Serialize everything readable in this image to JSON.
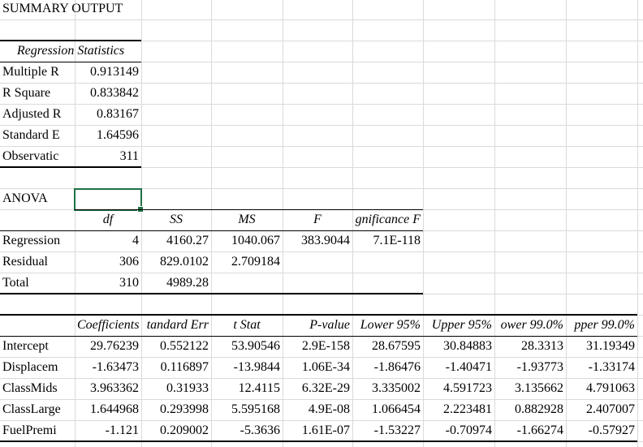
{
  "summary_title": "SUMMARY OUTPUT",
  "regression_statistics": {
    "header": "Regression Statistics",
    "rows": [
      [
        "Multiple R",
        "0.913149"
      ],
      [
        "R Square",
        "0.833842"
      ],
      [
        "Adjusted R",
        "0.83167"
      ],
      [
        "Standard E",
        "1.64596"
      ],
      [
        "Observatic",
        "311"
      ]
    ]
  },
  "anova": {
    "title": "ANOVA",
    "headers": [
      "",
      "df",
      "SS",
      "MS",
      "F",
      "gnificance F"
    ],
    "rows": [
      [
        "Regression",
        "4",
        "4160.27",
        "1040.067",
        "383.9044",
        "7.1E-118"
      ],
      [
        "Residual",
        "306",
        "829.0102",
        "2.709184",
        "",
        ""
      ],
      [
        "Total",
        "310",
        "4989.28",
        "",
        "",
        ""
      ]
    ]
  },
  "coefficients": {
    "headers": [
      "",
      "Coefficients",
      "tandard Err",
      "t Stat",
      "P-value",
      "Lower 95%",
      "Upper 95%",
      "ower 99.0%",
      "pper 99.0%"
    ],
    "rows": [
      [
        "Intercept",
        "29.76239",
        "0.552122",
        "53.90546",
        "2.9E-158",
        "28.67595",
        "30.84883",
        "28.3313",
        "31.19349"
      ],
      [
        "Displacem",
        "-1.63473",
        "0.116897",
        "-13.9844",
        "1.06E-34",
        "-1.86476",
        "-1.40471",
        "-1.93773",
        "-1.33174"
      ],
      [
        "ClassMids",
        "3.963362",
        "0.31933",
        "12.4115",
        "6.32E-29",
        "3.335002",
        "4.591723",
        "3.135662",
        "4.791063"
      ],
      [
        "ClassLarge",
        "1.644968",
        "0.293998",
        "5.595168",
        "4.9E-08",
        "1.066454",
        "2.223481",
        "0.882928",
        "2.407007"
      ],
      [
        "FuelPremi",
        "-1.121",
        "0.209002",
        "-5.3636",
        "1.61E-07",
        "-1.53227",
        "-0.70974",
        "-1.66274",
        "-0.57927"
      ]
    ]
  }
}
